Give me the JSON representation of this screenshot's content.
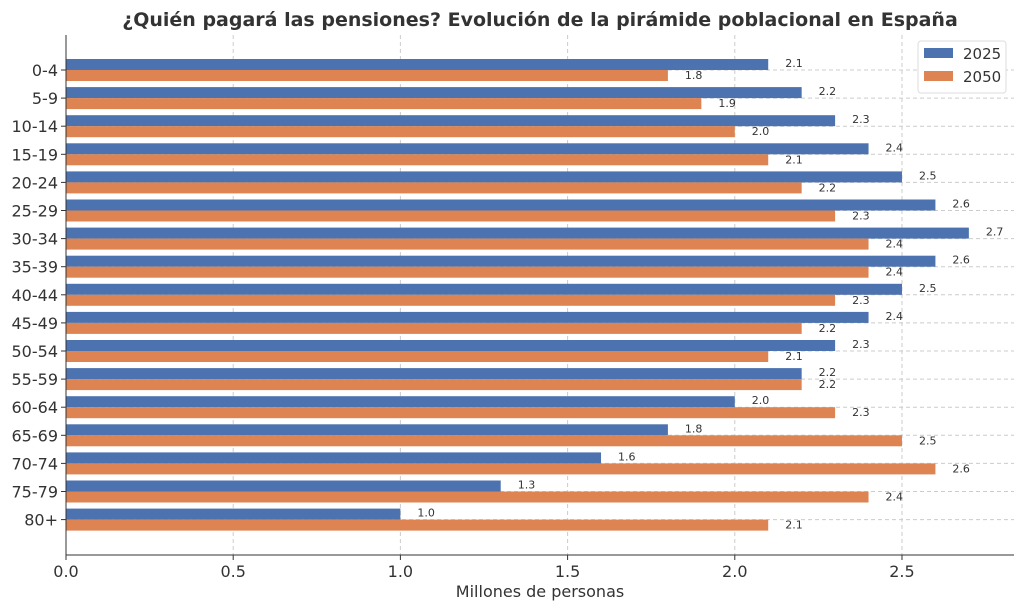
{
  "chart_data": {
    "type": "bar",
    "orientation": "horizontal",
    "title": "¿Quién pagará las pensiones? Evolución de la pirámide poblacional en España",
    "xlabel": "Millones de personas",
    "ylabel": "",
    "xlim": [
      0,
      2.835
    ],
    "xticks": [
      "0.0",
      "0.5",
      "1.0",
      "1.5",
      "2.0",
      "2.5"
    ],
    "grid": true,
    "legend_position": "top-right",
    "categories": [
      "0-4",
      "5-9",
      "10-14",
      "15-19",
      "20-24",
      "25-29",
      "30-34",
      "35-39",
      "40-44",
      "45-49",
      "50-54",
      "55-59",
      "60-64",
      "65-69",
      "70-74",
      "75-79",
      "80+"
    ],
    "series": [
      {
        "name": "2025",
        "color": "#4c72b0",
        "values": [
          2.1,
          2.2,
          2.3,
          2.4,
          2.5,
          2.6,
          2.7,
          2.6,
          2.5,
          2.4,
          2.3,
          2.2,
          2.0,
          1.8,
          1.6,
          1.3,
          1.0
        ]
      },
      {
        "name": "2050",
        "color": "#dd8452",
        "values": [
          1.8,
          1.9,
          2.0,
          2.1,
          2.2,
          2.3,
          2.4,
          2.4,
          2.3,
          2.2,
          2.1,
          2.2,
          2.3,
          2.5,
          2.6,
          2.4,
          2.1
        ]
      }
    ]
  }
}
